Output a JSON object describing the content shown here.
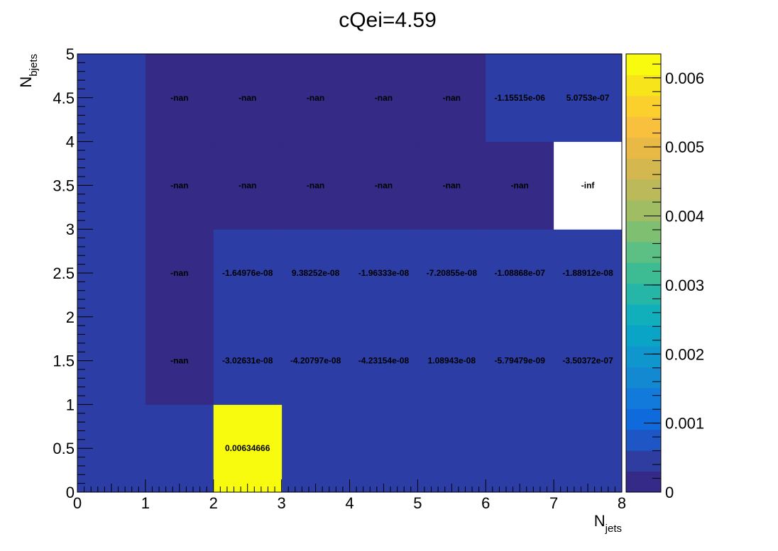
{
  "chart_data": {
    "type": "heatmap",
    "title": "cQei=4.59",
    "xlabel": {
      "base": "N",
      "sub": "jets"
    },
    "ylabel": {
      "base": "N",
      "sub": "bjets"
    },
    "xlim": [
      0,
      8
    ],
    "ylim": [
      0,
      5
    ],
    "x_ticks": [
      "0",
      "1",
      "2",
      "3",
      "4",
      "5",
      "6",
      "7",
      "8"
    ],
    "y_ticks": [
      "0",
      "0.5",
      "1",
      "1.5",
      "2",
      "2.5",
      "3",
      "3.5",
      "4",
      "4.5",
      "5"
    ],
    "x_bin_edges": [
      0,
      1,
      2,
      3,
      4,
      5,
      6,
      7,
      8
    ],
    "y_bin_edges": [
      0,
      1,
      2,
      3,
      4,
      5
    ],
    "colorbar": {
      "range": [
        0,
        0.00634666
      ],
      "ticks": [
        "0",
        "0.001",
        "0.002",
        "0.003",
        "0.004",
        "0.005",
        "0.006"
      ],
      "palette": [
        "#352a87",
        "#2e3d9f",
        "#1f56c6",
        "#0f6bdc",
        "#117adb",
        "#1389d2",
        "#0f97cd",
        "#09a4c6",
        "#10afbb",
        "#25b6a7",
        "#3dbc94",
        "#5cbf83",
        "#7ebf72",
        "#a0bd63",
        "#bcb95a",
        "#d4b74e",
        "#e9b946",
        "#f8c03d",
        "#fbd02c",
        "#f8e41b",
        "#f9fb0e"
      ]
    },
    "colors": {
      "zero_fill": "#2c3da5",
      "nan_fill": "#352b86",
      "inf_fill": "#ffffff",
      "max_fill": "#f9fb0e"
    },
    "cells": [
      {
        "x": 2.5,
        "y": 0.5,
        "label": "0.00634666",
        "state": "max"
      },
      {
        "x": 1.5,
        "y": 1.5,
        "label": "-nan",
        "state": "nan"
      },
      {
        "x": 2.5,
        "y": 1.5,
        "label": "-3.02631e-08",
        "state": "zero"
      },
      {
        "x": 3.5,
        "y": 1.5,
        "label": "-4.20797e-08",
        "state": "zero"
      },
      {
        "x": 4.5,
        "y": 1.5,
        "label": "-4.23154e-08",
        "state": "zero"
      },
      {
        "x": 5.5,
        "y": 1.5,
        "label": "1.08943e-08",
        "state": "zero"
      },
      {
        "x": 6.5,
        "y": 1.5,
        "label": "-5.79479e-09",
        "state": "zero"
      },
      {
        "x": 7.5,
        "y": 1.5,
        "label": "-3.50372e-07",
        "state": "zero"
      },
      {
        "x": 1.5,
        "y": 2.5,
        "label": "-nan",
        "state": "nan"
      },
      {
        "x": 2.5,
        "y": 2.5,
        "label": "-1.64976e-08",
        "state": "zero"
      },
      {
        "x": 3.5,
        "y": 2.5,
        "label": "9.38252e-08",
        "state": "zero"
      },
      {
        "x": 4.5,
        "y": 2.5,
        "label": "-1.96333e-08",
        "state": "zero"
      },
      {
        "x": 5.5,
        "y": 2.5,
        "label": "-7.20855e-08",
        "state": "zero"
      },
      {
        "x": 6.5,
        "y": 2.5,
        "label": "-1.08868e-07",
        "state": "zero"
      },
      {
        "x": 7.5,
        "y": 2.5,
        "label": "-1.88912e-08",
        "state": "zero"
      },
      {
        "x": 1.5,
        "y": 3.5,
        "label": "-nan",
        "state": "nan"
      },
      {
        "x": 2.5,
        "y": 3.5,
        "label": "-nan",
        "state": "nan"
      },
      {
        "x": 3.5,
        "y": 3.5,
        "label": "-nan",
        "state": "nan"
      },
      {
        "x": 4.5,
        "y": 3.5,
        "label": "-nan",
        "state": "nan"
      },
      {
        "x": 5.5,
        "y": 3.5,
        "label": "-nan",
        "state": "nan"
      },
      {
        "x": 6.5,
        "y": 3.5,
        "label": "-nan",
        "state": "nan"
      },
      {
        "x": 7.5,
        "y": 3.5,
        "label": "-inf",
        "state": "inf"
      },
      {
        "x": 1.5,
        "y": 4.5,
        "label": "-nan",
        "state": "nan"
      },
      {
        "x": 2.5,
        "y": 4.5,
        "label": "-nan",
        "state": "nan"
      },
      {
        "x": 3.5,
        "y": 4.5,
        "label": "-nan",
        "state": "nan"
      },
      {
        "x": 4.5,
        "y": 4.5,
        "label": "-nan",
        "state": "nan"
      },
      {
        "x": 5.5,
        "y": 4.5,
        "label": "-nan",
        "state": "nan"
      },
      {
        "x": 6.5,
        "y": 4.5,
        "label": "-1.15515e-06",
        "state": "zero"
      },
      {
        "x": 7.5,
        "y": 4.5,
        "label": "5.0753e-07",
        "state": "zero"
      }
    ]
  }
}
